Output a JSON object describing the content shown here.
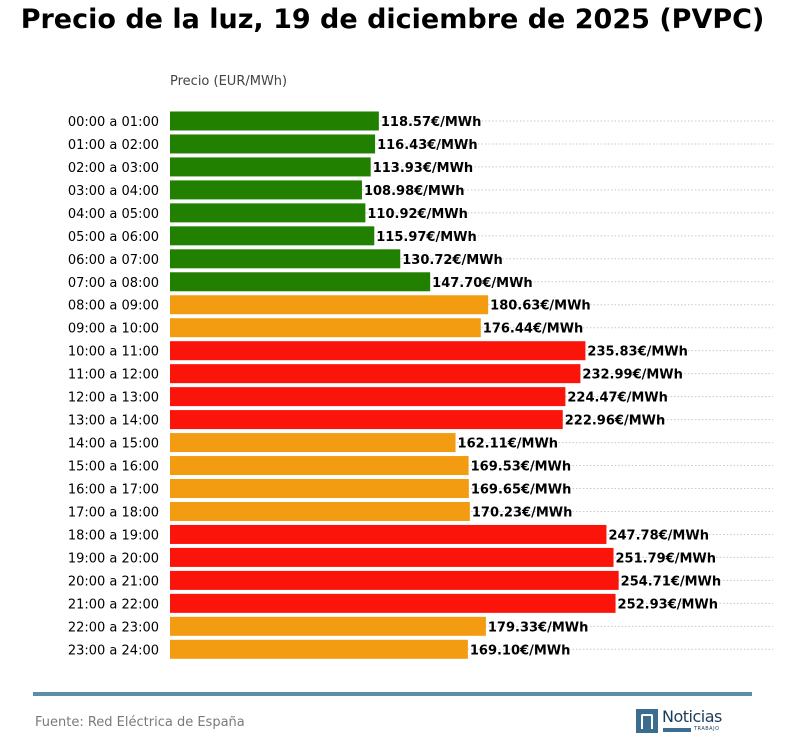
{
  "title": "Precio de la luz, 19 de diciembre de 2025 (PVPC)",
  "footer": {
    "source": "Fuente: Red Eléctrica de España",
    "logo_text": "Noticias",
    "logo_subtext": "TRABAJO"
  },
  "colors": {
    "low": "#218000",
    "mid": "#f39c12",
    "high": "#fb140a",
    "rule": "#5b8fa8",
    "grid": "#c8c8c8"
  },
  "chart_data": {
    "type": "bar",
    "orientation": "horizontal",
    "ylabel": "Precio (EUR/MWh)",
    "xlabel": "",
    "xlim": [
      0,
      350
    ],
    "grid": "dotted horizontal",
    "unit_suffix": "€/MWh",
    "categories": [
      "00:00 a 01:00",
      "01:00 a 02:00",
      "02:00 a 03:00",
      "03:00 a 04:00",
      "04:00 a 05:00",
      "05:00 a 06:00",
      "06:00 a 07:00",
      "07:00 a 08:00",
      "08:00 a 09:00",
      "09:00 a 10:00",
      "10:00 a 11:00",
      "11:00 a 12:00",
      "12:00 a 13:00",
      "13:00 a 14:00",
      "14:00 a 15:00",
      "15:00 a 16:00",
      "16:00 a 17:00",
      "17:00 a 18:00",
      "18:00 a 19:00",
      "19:00 a 20:00",
      "20:00 a 21:00",
      "21:00 a 22:00",
      "22:00 a 23:00",
      "23:00 a 24:00"
    ],
    "values": [
      118.57,
      116.43,
      113.93,
      108.98,
      110.92,
      115.97,
      130.72,
      147.7,
      180.63,
      176.44,
      235.83,
      232.99,
      224.47,
      222.96,
      162.11,
      169.53,
      169.65,
      170.23,
      247.78,
      251.79,
      254.71,
      252.93,
      179.33,
      169.1
    ],
    "labels": [
      "118.57€/MWh",
      "116.43€/MWh",
      "113.93€/MWh",
      "108.98€/MWh",
      "110.92€/MWh",
      "115.97€/MWh",
      "130.72€/MWh",
      "147.70€/MWh",
      "180.63€/MWh",
      "176.44€/MWh",
      "235.83€/MWh",
      "232.99€/MWh",
      "224.47€/MWh",
      "222.96€/MWh",
      "162.11€/MWh",
      "169.53€/MWh",
      "169.65€/MWh",
      "170.23€/MWh",
      "247.78€/MWh",
      "251.79€/MWh",
      "254.71€/MWh",
      "252.93€/MWh",
      "179.33€/MWh",
      "169.10€/MWh"
    ],
    "levels": [
      "low",
      "low",
      "low",
      "low",
      "low",
      "low",
      "low",
      "low",
      "mid",
      "mid",
      "high",
      "high",
      "high",
      "high",
      "mid",
      "mid",
      "mid",
      "mid",
      "high",
      "high",
      "high",
      "high",
      "mid",
      "mid"
    ]
  }
}
